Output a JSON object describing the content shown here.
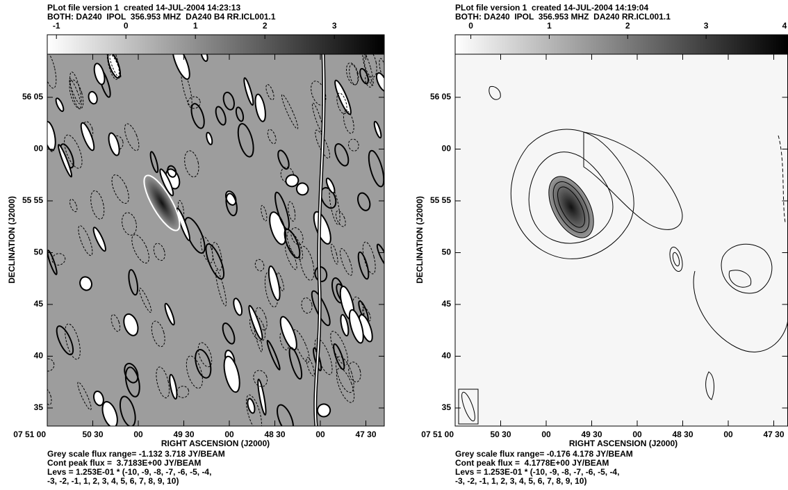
{
  "panels": [
    {
      "header": [
        "PLot file version 1  created 14-JUL-2004 14:23:13",
        "BOTH: DA240  IPOL  356.953 MHZ  DA240 B4 RR.ICL001.1"
      ],
      "colorbar": {
        "range": [
          -1.132,
          3.718
        ],
        "ticks": [
          -1,
          0,
          1,
          2,
          3
        ]
      },
      "y_axis": {
        "label": "DECLINATION (J2000)",
        "ticks": [
          "56 05",
          "00",
          "55 55",
          "50",
          "45",
          "40",
          "35"
        ]
      },
      "x_axis": {
        "label": "RIGHT ASCENSION (J2000)",
        "ticks": [
          "07 51 00",
          "50 30",
          "00",
          "49 30",
          "00",
          "48 30",
          "00",
          "47 30"
        ]
      },
      "footer": [
        "Grey scale flux range= -1.132 3.718 JY/BEAM",
        "Cont peak flux =  3.7183E+00 JY/BEAM",
        "Levs = 1.253E-01 * (-10, -9, -8, -7, -6, -5, -4,",
        "-3, -2, -1, 1, 2, 3, 4, 5, 6, 7, 8, 9, 10)"
      ]
    },
    {
      "header": [
        "PLot file version 1  created 14-JUL-2004 14:19:04",
        "BOTH: DA240  IPOL  356.953 MHZ  DA240 RR.ICL001.1"
      ],
      "colorbar": {
        "range": [
          -0.2,
          4.04
        ],
        "ticks": [
          0,
          1,
          2,
          3,
          4
        ]
      },
      "y_axis": {
        "label": "DECLINATION (J2000)",
        "ticks": [
          "56 05",
          "00",
          "55 55",
          "50",
          "45",
          "40",
          "35"
        ]
      },
      "x_axis": {
        "label": "RIGHT ASCENSION (J2000)",
        "ticks": [
          "07 51 00",
          "50 30",
          "00",
          "49 30",
          "00",
          "48 30",
          "00",
          "47 30"
        ]
      },
      "footer": [
        "Grey scale flux range= -0.176 4.178 JY/BEAM",
        "Cont peak flux =  4.1778E+00 JY/BEAM",
        "Levs = 1.253E-01 * (-10, -9, -8, -7, -6, -5, -4,",
        "-3, -2, -1, 1, 2, 3, 4, 5, 6, 7, 8, 9, 10)"
      ]
    }
  ]
}
